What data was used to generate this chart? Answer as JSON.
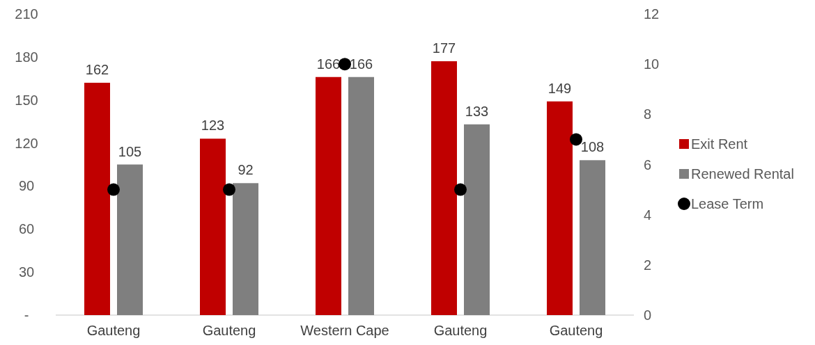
{
  "chart_data": {
    "type": "bar",
    "categories": [
      "Gauteng",
      "Gauteng",
      "Western Cape",
      "Gauteng",
      "Gauteng"
    ],
    "series": [
      {
        "name": "Exit Rent",
        "color": "#c00000",
        "values": [
          162,
          123,
          166,
          177,
          149
        ],
        "value_labels": [
          "162",
          "123",
          "166",
          "177",
          "149"
        ]
      },
      {
        "name": "Renewed Rental",
        "color": "#7f7f7f",
        "values": [
          105,
          92,
          166,
          133,
          108
        ],
        "value_labels": [
          "105",
          "92",
          "166",
          "133",
          "108"
        ]
      },
      {
        "name": "Lease Term",
        "type": "scatter",
        "axis": "y2",
        "color": "#000000",
        "marker": "circle",
        "values": [
          5,
          5,
          10,
          5,
          7
        ]
      }
    ],
    "ylim": [
      0,
      210
    ],
    "yticks": [
      {
        "value": 0,
        "label": "-"
      },
      30,
      60,
      90,
      120,
      150,
      180,
      210
    ],
    "y2lim": [
      0,
      12
    ],
    "y2ticks": [
      0,
      2,
      4,
      6,
      8,
      10,
      12
    ],
    "grid": false,
    "legend": "right"
  }
}
